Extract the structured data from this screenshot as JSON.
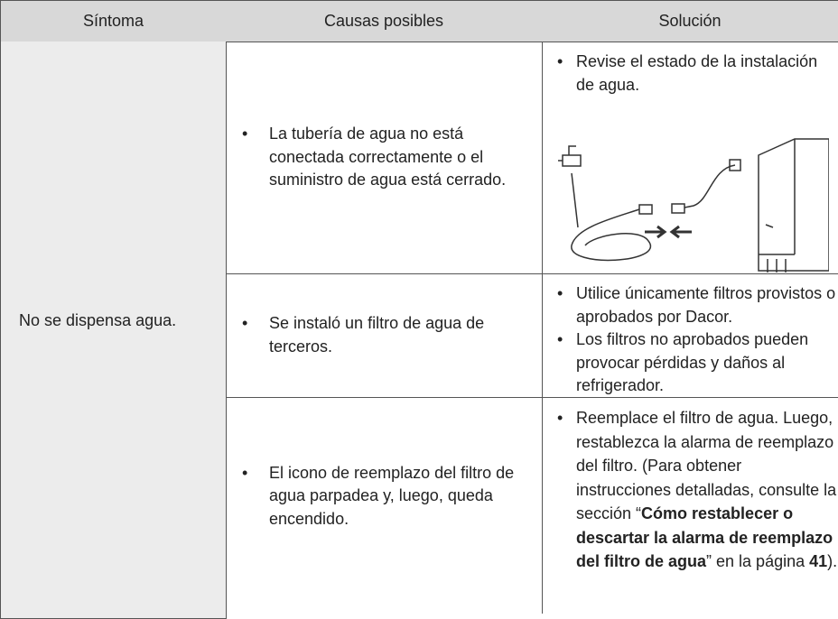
{
  "table": {
    "header": [
      "Síntoma",
      "Causas posibles",
      "Solución"
    ],
    "symptom": "No se dispensa agua.",
    "rows": [
      {
        "cause": "La tubería de agua no está conectada correctamente o el suministro de agua está cerrado.",
        "solution": [
          "Revise el estado de la instalación de agua."
        ]
      },
      {
        "cause": "Se instaló un filtro de agua de terceros.",
        "solution": [
          "Utilice únicamente filtros provistos o aprobados por Dacor.",
          "Los filtros no aprobados pueden provocar pérdidas y daños al refrigerador."
        ]
      },
      {
        "cause": "El icono de reemplazo del filtro de agua parpadea y, luego, queda encendido.",
        "solution_segments": [
          {
            "text": "Reemplace el filtro de agua. Luego, restablezca la alarma de reemplazo del filtro. (Para obtener instrucciones detalladas, consulte la sección “",
            "bold": false
          },
          {
            "text": "Cómo restablecer o descartar la alarma de reemplazo del filtro de agua",
            "bold": true
          },
          {
            "text": "” en la página ",
            "bold": false
          },
          {
            "text": "41",
            "bold": true
          },
          {
            "text": ").",
            "bold": false
          }
        ]
      }
    ]
  }
}
